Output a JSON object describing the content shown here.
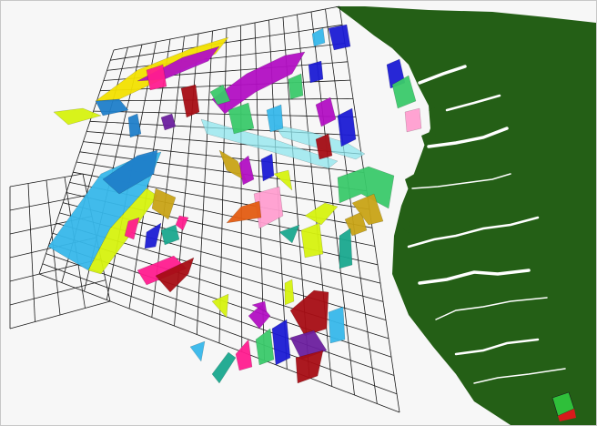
{
  "scene": {
    "background": "#f7f7f7",
    "coastline_color": "#245f16",
    "grid_color": "#1a1a1a",
    "fault_palette": [
      "#1f7ec9",
      "#37b7ea",
      "#f2e000",
      "#d6f20f",
      "#b20fc3",
      "#ff1c8f",
      "#8ee6ee",
      "#3ac96a",
      "#a60d14",
      "#1b1bd4",
      "#c8a316",
      "#19a88e",
      "#ff9ed0",
      "#6b1f9e",
      "#e35c12"
    ]
  }
}
